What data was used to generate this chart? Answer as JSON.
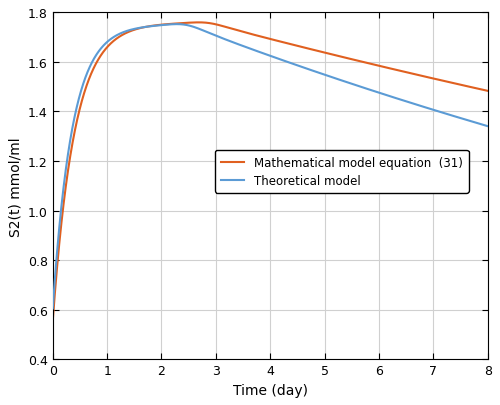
{
  "title": "",
  "xlabel": "Time (day)",
  "ylabel": "S2(t) mmol/ml",
  "xlim": [
    0,
    8
  ],
  "ylim": [
    0.4,
    1.8
  ],
  "xticks": [
    0,
    1,
    2,
    3,
    4,
    5,
    6,
    7,
    8
  ],
  "yticks": [
    0.4,
    0.6,
    0.8,
    1.0,
    1.2,
    1.4,
    1.6,
    1.8
  ],
  "blue_color": "#5B9BD5",
  "red_color": "#E06020",
  "legend_labels": [
    "Theoretical model",
    "Mathematical model equation  (31)"
  ],
  "background_color": "#ffffff",
  "grid_color": "#d0d0d0",
  "linewidth": 1.5,
  "blue_S0": 0.605,
  "blue_peak": 1.75,
  "blue_peak_t": 2.45,
  "blue_rise_k": 2.8,
  "blue_decay_k": 0.048,
  "red_S0": 0.555,
  "red_peak": 1.758,
  "red_peak_t": 2.85,
  "red_rise_k": 2.5,
  "red_decay_k": 0.033
}
